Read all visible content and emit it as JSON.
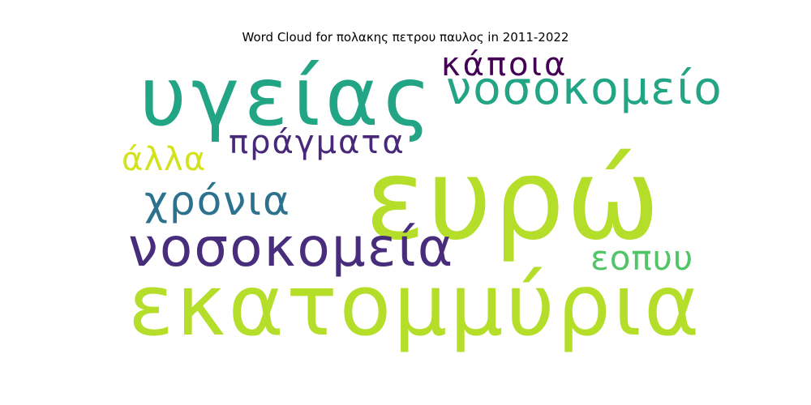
{
  "title": "Word Cloud for πολακης πετρου παυλος in 2011-2022",
  "words": [
    {
      "id": "ekatommyria",
      "text": "εκατομμύρια",
      "color": "#b5de2b"
    },
    {
      "id": "evro",
      "text": "ευρώ",
      "color": "#b5de2b"
    },
    {
      "id": "ygeias",
      "text": "υγείας",
      "color": "#21a585"
    },
    {
      "id": "nosokomeia",
      "text": "νοσοκομεία",
      "color": "#472d7b"
    },
    {
      "id": "nosokomeio",
      "text": "νοσοκομείο",
      "color": "#21a585"
    },
    {
      "id": "xronia",
      "text": "χρόνια",
      "color": "#2c728e"
    },
    {
      "id": "pragmata",
      "text": "πράγματα",
      "color": "#482878"
    },
    {
      "id": "kapoia",
      "text": "κάποια",
      "color": "#440154"
    },
    {
      "id": "alla",
      "text": "άλλα",
      "color": "#d2e21b"
    },
    {
      "id": "eopyy",
      "text": "εοπυυ",
      "color": "#52c569"
    }
  ]
}
